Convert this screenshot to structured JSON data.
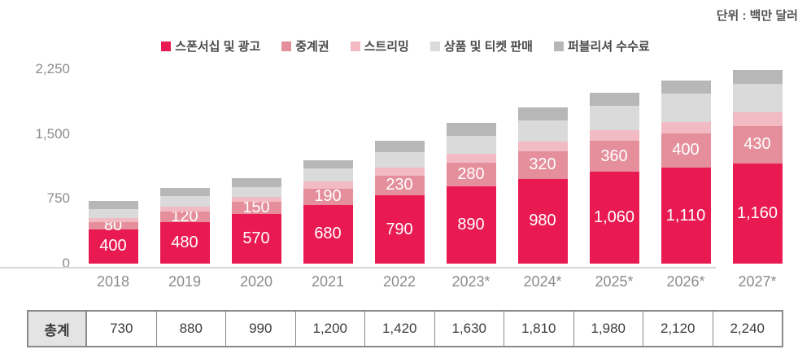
{
  "unit_label": "단위 : 백만 달러",
  "y_axis": {
    "ticks": [
      0,
      750,
      1500,
      2250
    ],
    "max": 2250
  },
  "table": {
    "row_header": "총계"
  },
  "chart_data": {
    "type": "bar",
    "stacked": true,
    "title": "",
    "xlabel": "",
    "ylabel": "",
    "unit": "백만 달러",
    "ylim": [
      0,
      2250
    ],
    "legend_position": "top",
    "grid": false,
    "categories": [
      "2018",
      "2019",
      "2020",
      "2021",
      "2022",
      "2023*",
      "2024*",
      "2025*",
      "2026*",
      "2027*"
    ],
    "series": [
      {
        "name": "스폰서십 및 광고",
        "color": "#e91a52",
        "show_labels": true,
        "values": [
          400,
          480,
          570,
          680,
          790,
          890,
          980,
          1060,
          1110,
          1160
        ]
      },
      {
        "name": "중계권",
        "color": "#e48f9b",
        "show_labels": true,
        "values": [
          80,
          120,
          150,
          190,
          230,
          280,
          320,
          360,
          400,
          430
        ]
      },
      {
        "name": "스트리밍",
        "color": "#f2bac2",
        "show_labels": false,
        "values": [
          50,
          60,
          50,
          80,
          90,
          100,
          110,
          120,
          130,
          160
        ]
      },
      {
        "name": "상품 및 티켓 판매",
        "color": "#dadada",
        "show_labels": false,
        "values": [
          100,
          120,
          120,
          150,
          180,
          210,
          250,
          290,
          330,
          330
        ]
      },
      {
        "name": "퍼블리셔 수수료",
        "color": "#b7b7b7",
        "show_labels": false,
        "values": [
          100,
          100,
          100,
          100,
          130,
          150,
          150,
          150,
          150,
          160
        ]
      }
    ],
    "totals": [
      730,
      880,
      990,
      1200,
      1420,
      1630,
      1810,
      1980,
      2120,
      2240
    ]
  }
}
